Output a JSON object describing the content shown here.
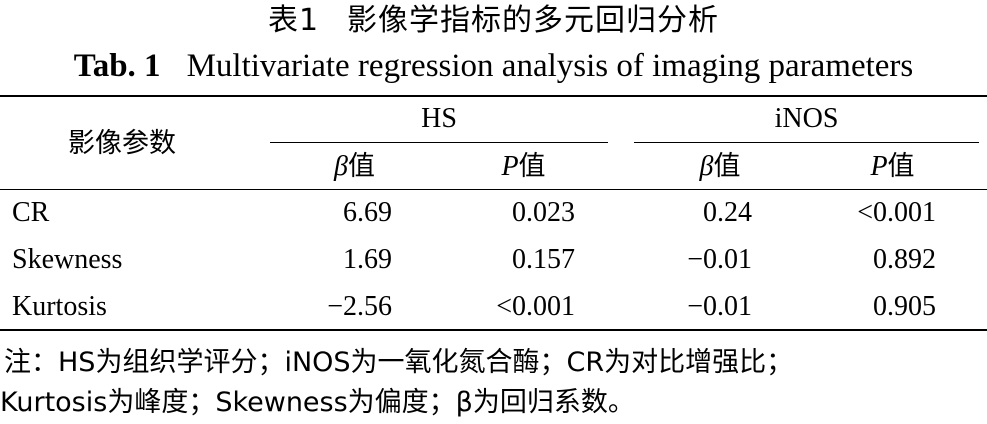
{
  "title_cn_number": "表1",
  "title_cn": "影像学指标的多元回归分析",
  "title_en_number": "Tab. 1",
  "title_en": "Multivariate regression analysis of imaging parameters",
  "header": {
    "param": "影像参数",
    "group1": "HS",
    "group2": "iNOS",
    "beta_sym": "β",
    "p_sym": "P",
    "val_suffix": "值"
  },
  "rows": [
    {
      "name": "CR",
      "hs_beta": "6.69",
      "hs_p": "0.023",
      "inos_beta": "0.24",
      "inos_p": "<0.001"
    },
    {
      "name": "Skewness",
      "hs_beta": "1.69",
      "hs_p": "0.157",
      "inos_beta": "−0.01",
      "inos_p": "0.892"
    },
    {
      "name": "Kurtosis",
      "hs_beta": "−2.56",
      "hs_p": "<0.001",
      "inos_beta": "−0.01",
      "inos_p": "0.905"
    }
  ],
  "note_line1": "注：HS为组织学评分；iNOS为一氧化氮合酶；CR为对比增强比；",
  "note_line2": "Kurtosis为峰度；Skewness为偏度；β为回归系数。"
}
